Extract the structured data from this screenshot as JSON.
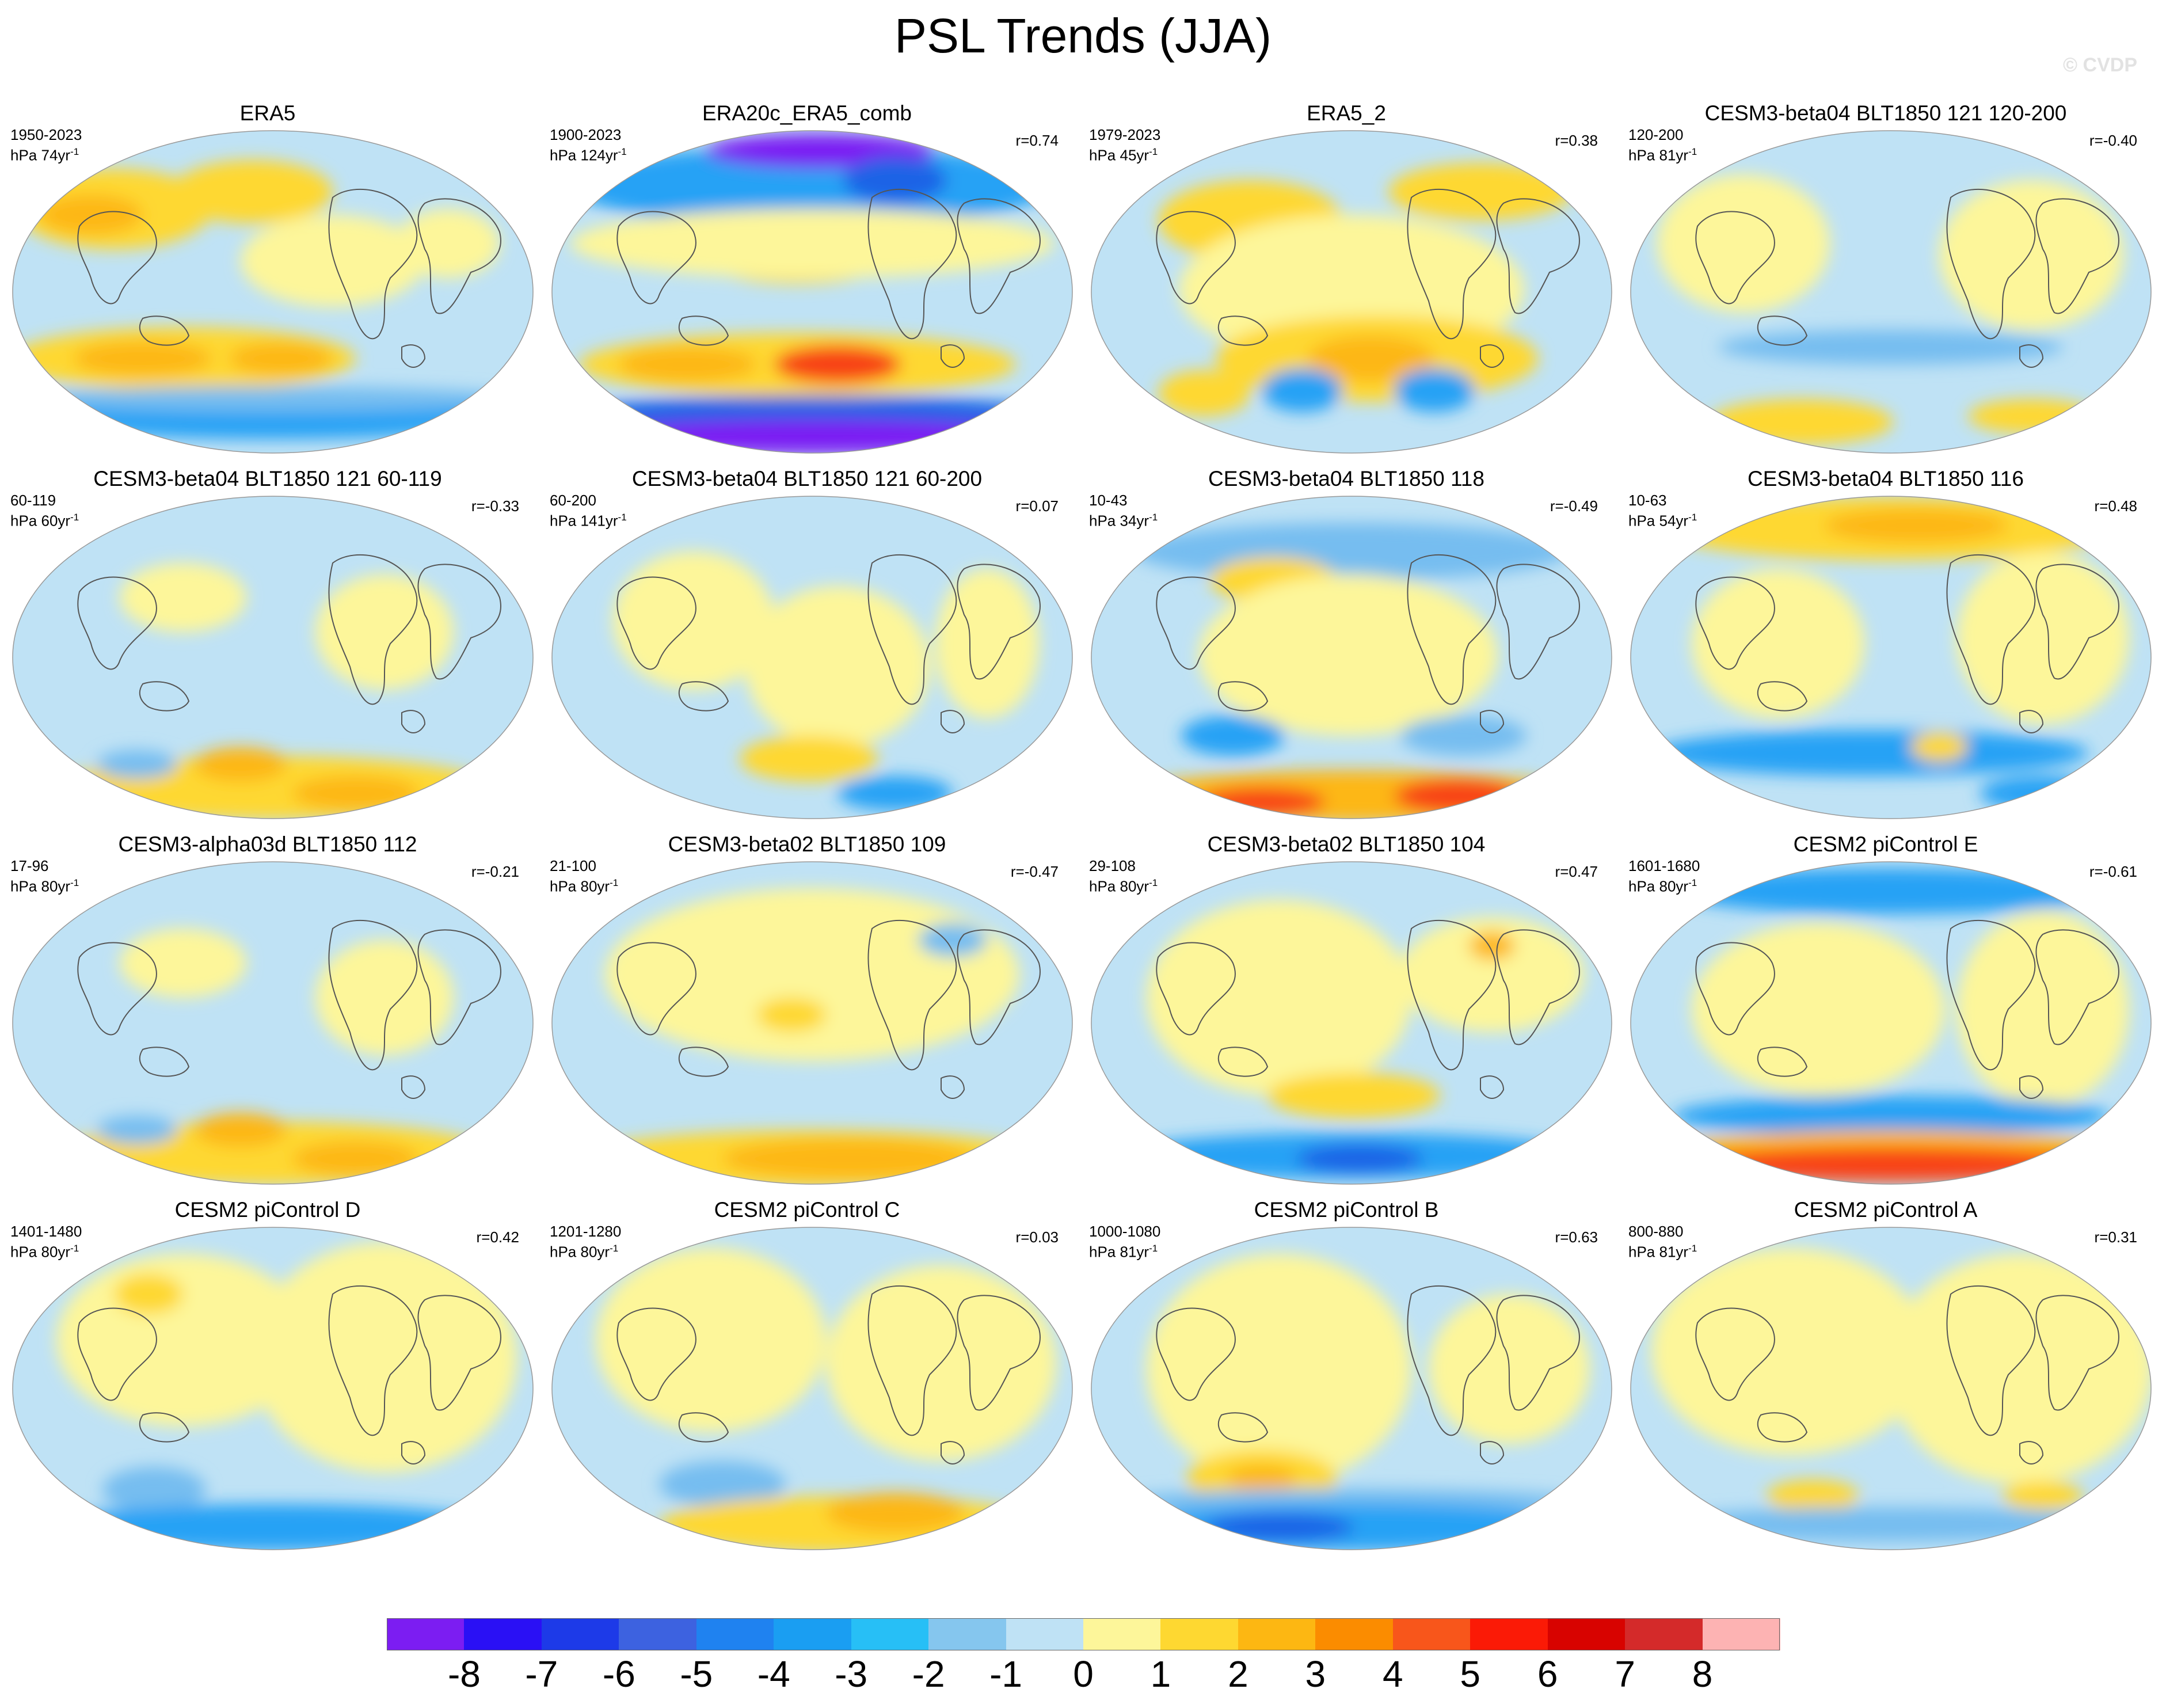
{
  "figure": {
    "title": "PSL Trends (JJA)",
    "watermark": "© CVDP"
  },
  "map_palette": {
    "ocean_blue": "#bfe2f5",
    "yellow": "#fdf69a",
    "light_orange": "#fed831",
    "orange": "#fdb712",
    "dark_orange": "#fb8c00",
    "red": "#f84315",
    "blue_mid": "#76bdf0",
    "blue_strong": "#27a2f5",
    "blue_deep": "#1f64e6",
    "violet": "#7a1ff3",
    "land_line": "#555555"
  },
  "panels": [
    {
      "name": "ERA5",
      "years": "1950-2023",
      "units_pre": "hPa 74yr",
      "units_sup": "-1",
      "corr": "",
      "pattern": "era5"
    },
    {
      "name": "ERA20c_ERA5_comb",
      "years": "1900-2023",
      "units_pre": "hPa 124yr",
      "units_sup": "-1",
      "corr": "r=0.74",
      "pattern": "era20c"
    },
    {
      "name": "ERA5_2",
      "years": "1979-2023",
      "units_pre": "hPa 45yr",
      "units_sup": "-1",
      "corr": "r=0.38",
      "pattern": "era5_2"
    },
    {
      "name": "CESM3-beta04 BLT1850 121 120-200",
      "years": "120-200",
      "units_pre": "hPa 81yr",
      "units_sup": "-1",
      "corr": "r=-0.40",
      "pattern": "blue_light"
    },
    {
      "name": "CESM3-beta04 BLT1850 121 60-119",
      "years": "60-119",
      "units_pre": "hPa 60yr",
      "units_sup": "-1",
      "corr": "r=-0.33",
      "pattern": "south_orange"
    },
    {
      "name": "CESM3-beta04 BLT1850 121 60-200",
      "years": "60-200",
      "units_pre": "hPa 141yr",
      "units_sup": "-1",
      "corr": "r=0.07",
      "pattern": "mixed"
    },
    {
      "name": "CESM3-beta04 BLT1850 118",
      "years": "10-43",
      "units_pre": "hPa 34yr",
      "units_sup": "-1",
      "corr": "r=-0.49",
      "pattern": "south_red"
    },
    {
      "name": "CESM3-beta04 BLT1850 116",
      "years": "10-63",
      "units_pre": "hPa 54yr",
      "units_sup": "-1",
      "corr": "r=0.48",
      "pattern": "north_orange"
    },
    {
      "name": "CESM3-alpha03d BLT1850 112",
      "years": "17-96",
      "units_pre": "hPa 80yr",
      "units_sup": "-1",
      "corr": "r=-0.21",
      "pattern": "south_orange"
    },
    {
      "name": "CESM3-beta02 BLT1850 109",
      "years": "21-100",
      "units_pre": "hPa 80yr",
      "units_sup": "-1",
      "corr": "r=-0.47",
      "pattern": "south_orange2"
    },
    {
      "name": "CESM3-beta02 BLT1850 104",
      "years": "29-108",
      "units_pre": "hPa 80yr",
      "units_sup": "-1",
      "corr": "r=0.47",
      "pattern": "south_blue"
    },
    {
      "name": "CESM2 piControl E",
      "years": "1601-1680",
      "units_pre": "hPa 80yr",
      "units_sup": "-1",
      "corr": "r=-0.61",
      "pattern": "south_red2"
    },
    {
      "name": "CESM2 piControl D",
      "years": "1401-1480",
      "units_pre": "hPa 80yr",
      "units_sup": "-1",
      "corr": "r=0.42",
      "pattern": "south_blue2"
    },
    {
      "name": "CESM2 piControl C",
      "years": "1201-1280",
      "units_pre": "hPa 80yr",
      "units_sup": "-1",
      "corr": "r=0.03",
      "pattern": "mixed2"
    },
    {
      "name": "CESM2 piControl B",
      "years": "1000-1080",
      "units_pre": "hPa 81yr",
      "units_sup": "-1",
      "corr": "r=0.63",
      "pattern": "south_blue3"
    },
    {
      "name": "CESM2 piControl A",
      "years": "800-880",
      "units_pre": "hPa 81yr",
      "units_sup": "-1",
      "corr": "r=0.31",
      "pattern": "light"
    }
  ],
  "colorbar": {
    "labels": [
      "-8",
      "-7",
      "-6",
      "-5",
      "-4",
      "-3",
      "-2",
      "-1",
      "0",
      "1",
      "2",
      "3",
      "4",
      "5",
      "6",
      "7",
      "8"
    ],
    "colors": [
      "#7c1df2",
      "#2a10f5",
      "#1d3ae8",
      "#3d62e0",
      "#1f82f0",
      "#1a9ef2",
      "#27bff6",
      "#85c6ee",
      "#bfe2f5",
      "#fdf69a",
      "#fed831",
      "#fdb712",
      "#fb8c00",
      "#f8561b",
      "#fb1a06",
      "#d80300",
      "#d42a2a",
      "#fdb3b3"
    ]
  }
}
